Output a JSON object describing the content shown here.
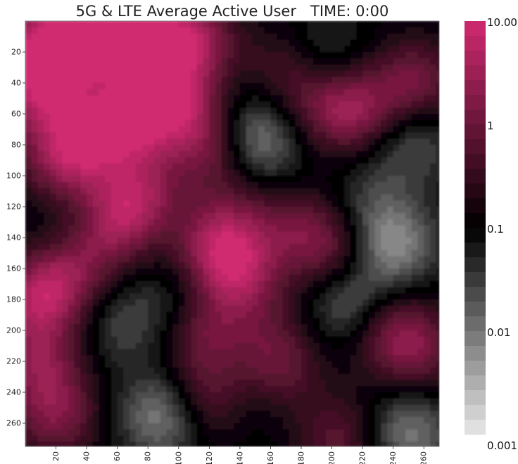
{
  "chart_data": {
    "type": "heatmap",
    "title": "5G & LTE Average Active User   TIME: 0:00",
    "xlabel": "",
    "ylabel": "",
    "x_ticks": [
      20,
      40,
      60,
      80,
      100,
      120,
      140,
      160,
      180,
      200,
      220,
      240,
      260
    ],
    "y_ticks": [
      20,
      40,
      60,
      80,
      100,
      120,
      140,
      160,
      180,
      200,
      220,
      240,
      260
    ],
    "xlim": [
      0,
      270
    ],
    "ylim": [
      0,
      275
    ],
    "y_inverted": true,
    "colorbar": {
      "scale": "log",
      "range": [
        0.001,
        10
      ],
      "ticks": [
        10,
        1,
        0.1,
        0.01,
        0.001
      ],
      "tick_labels": [
        "10.00",
        "1",
        "0.1",
        "0.01",
        "0.001"
      ],
      "colormap": "white-gray-black-magenta",
      "low_color": "#e8e8e8",
      "mid_color": "#000000",
      "high_color": "#d02a70"
    },
    "hotspots": [
      {
        "x": 10,
        "y": 20,
        "value": 4
      },
      {
        "x": 30,
        "y": 10,
        "value": 5
      },
      {
        "x": 55,
        "y": 10,
        "value": 3.5
      },
      {
        "x": 85,
        "y": 15,
        "value": 2.5
      },
      {
        "x": 110,
        "y": 10,
        "value": 3
      },
      {
        "x": 10,
        "y": 50,
        "value": 3
      },
      {
        "x": 25,
        "y": 90,
        "value": 4
      },
      {
        "x": 50,
        "y": 70,
        "value": 3
      },
      {
        "x": 75,
        "y": 60,
        "value": 3
      },
      {
        "x": 100,
        "y": 50,
        "value": 2.5
      },
      {
        "x": 75,
        "y": 110,
        "value": 2
      },
      {
        "x": 120,
        "y": 80,
        "value": 2
      },
      {
        "x": 60,
        "y": 130,
        "value": 1.5
      },
      {
        "x": 125,
        "y": 145,
        "value": 3
      },
      {
        "x": 140,
        "y": 165,
        "value": 2.5
      },
      {
        "x": 5,
        "y": 180,
        "value": 2
      },
      {
        "x": 25,
        "y": 170,
        "value": 1.5
      },
      {
        "x": 10,
        "y": 220,
        "value": 2
      },
      {
        "x": 20,
        "y": 255,
        "value": 2
      },
      {
        "x": 115,
        "y": 200,
        "value": 2
      },
      {
        "x": 120,
        "y": 245,
        "value": 2
      },
      {
        "x": 165,
        "y": 225,
        "value": 1
      },
      {
        "x": 200,
        "y": 55,
        "value": 2
      },
      {
        "x": 225,
        "y": 60,
        "value": 1
      },
      {
        "x": 175,
        "y": 30,
        "value": 1.5
      },
      {
        "x": 255,
        "y": 40,
        "value": 2
      },
      {
        "x": 200,
        "y": 150,
        "value": 1.5
      },
      {
        "x": 175,
        "y": 130,
        "value": 1
      },
      {
        "x": 240,
        "y": 200,
        "value": 1
      },
      {
        "x": 255,
        "y": 215,
        "value": 1
      },
      {
        "x": 205,
        "y": 270,
        "value": 1
      },
      {
        "x": 140,
        "y": 120,
        "value": 0.4
      },
      {
        "x": 160,
        "y": 200,
        "value": 0.3
      },
      {
        "x": 40,
        "y": 145,
        "value": 0.6
      },
      {
        "x": 150,
        "y": 75,
        "value": 0.004
      },
      {
        "x": 190,
        "y": 25,
        "value": 0.008
      },
      {
        "x": 250,
        "y": 75,
        "value": 0.01
      },
      {
        "x": 240,
        "y": 145,
        "value": 0.004
      },
      {
        "x": 210,
        "y": 180,
        "value": 0.008
      },
      {
        "x": 250,
        "y": 265,
        "value": 0.006
      },
      {
        "x": 90,
        "y": 255,
        "value": 0.004
      },
      {
        "x": 60,
        "y": 195,
        "value": 0.02
      },
      {
        "x": 100,
        "y": 185,
        "value": 0.02
      },
      {
        "x": 30,
        "y": 135,
        "value": 0.03
      },
      {
        "x": 140,
        "y": 245,
        "value": 0.03
      },
      {
        "x": 225,
        "y": 115,
        "value": 0.03
      },
      {
        "x": 165,
        "y": 110,
        "value": 0.05
      }
    ]
  }
}
